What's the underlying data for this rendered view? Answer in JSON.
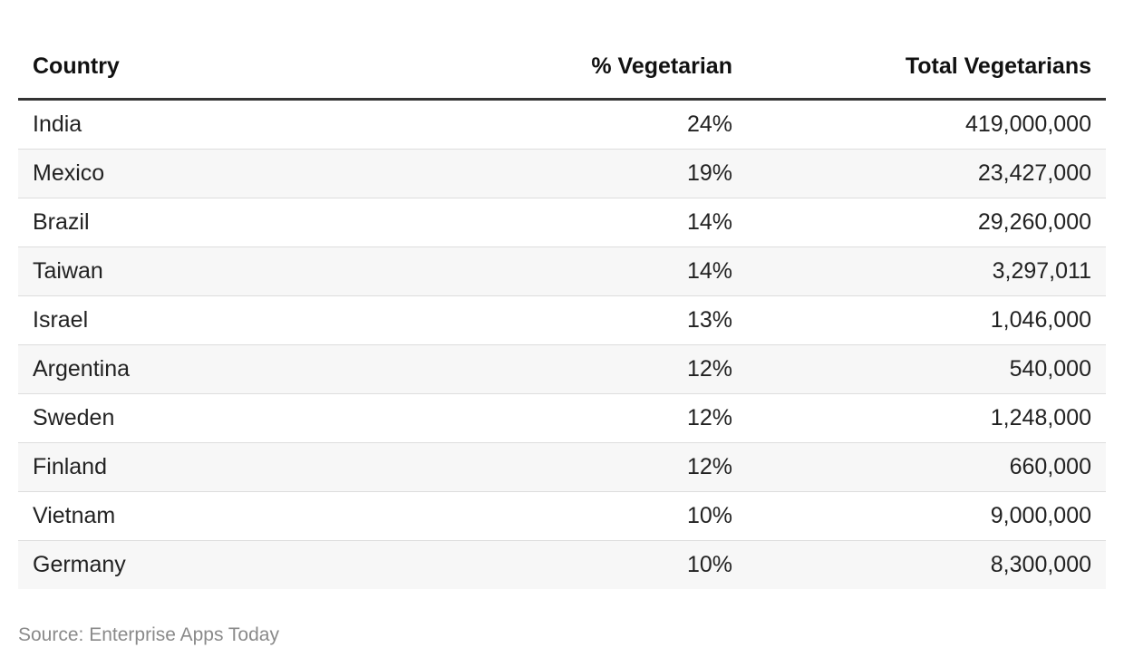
{
  "table": {
    "header": [
      "Country",
      "% Vegetarian",
      "Total Vegetarians"
    ],
    "rows": [
      [
        "India",
        "24%",
        "419,000,000"
      ],
      [
        "Mexico",
        "19%",
        "23,427,000"
      ],
      [
        "Brazil",
        "14%",
        "29,260,000"
      ],
      [
        "Taiwan",
        "14%",
        "3,297,011"
      ],
      [
        "Israel",
        "13%",
        "1,046,000"
      ],
      [
        "Argentina",
        "12%",
        "540,000"
      ],
      [
        "Sweden",
        "12%",
        "1,248,000"
      ],
      [
        "Finland",
        "12%",
        "660,000"
      ],
      [
        "Vietnam",
        "10%",
        "9,000,000"
      ],
      [
        "Germany",
        "10%",
        "8,300,000"
      ]
    ]
  },
  "source": "Source: Enterprise Apps Today"
}
